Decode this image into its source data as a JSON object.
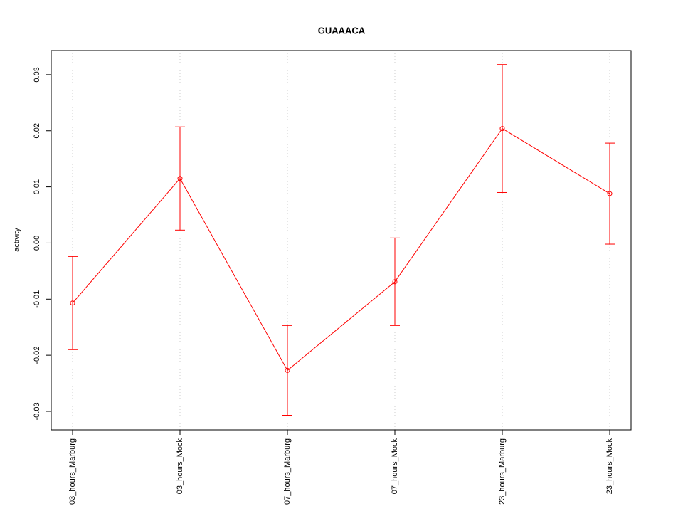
{
  "chart_data": {
    "type": "line",
    "title": "GUAAACA",
    "y_label": "activity",
    "categories": [
      "03_hours_Marburg",
      "03_hours_Mock",
      "07_hours_Marburg",
      "07_hours_Mock",
      "23_hours_Marburg",
      "23_hours_Mock"
    ],
    "series": [
      {
        "color": "#ff0000",
        "values": [
          -0.0107,
          0.0115,
          -0.0227,
          -0.0069,
          0.0204,
          0.0088
        ],
        "errors": [
          0.0083,
          0.0092,
          0.008,
          0.0078,
          0.0114,
          0.009
        ]
      }
    ],
    "ylim": [
      -0.0333,
      0.0343
    ],
    "yticks": [
      {
        "value": -0.03,
        "label": "-0.03"
      },
      {
        "value": -0.02,
        "label": "-0.02"
      },
      {
        "value": -0.01,
        "label": "-0.01"
      },
      {
        "value": 0,
        "label": "0.00"
      },
      {
        "value": 0.01,
        "label": "0.01"
      },
      {
        "value": 0.02,
        "label": "0.02"
      },
      {
        "value": 0.03,
        "label": "0.03"
      }
    ],
    "hline": 0,
    "grid": true
  }
}
